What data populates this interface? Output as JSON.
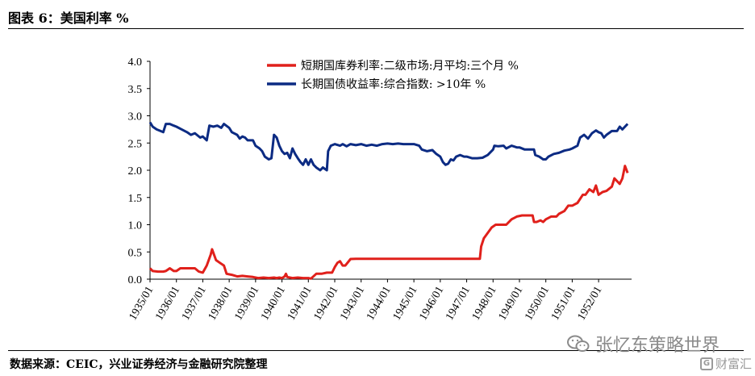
{
  "header": {
    "title": "图表 6：美国利率 %"
  },
  "footer": {
    "source": "数据来源：CEIC，兴业证券经济与金融研究院整理"
  },
  "watermark": {
    "text": "张忆东策略世界",
    "badge_text": "财富汇",
    "badge_icon": "G"
  },
  "chart_data": {
    "type": "line",
    "ylim": [
      0,
      4
    ],
    "yticks": [
      "0.0",
      "0.5",
      "1.0",
      "1.5",
      "2.0",
      "2.5",
      "3.0",
      "3.5",
      "4.0"
    ],
    "xlim": [
      1935.0,
      1953.25
    ],
    "xticks": [
      "1935/01",
      "1936/01",
      "1937/01",
      "1938/01",
      "1939/01",
      "1940/01",
      "1941/01",
      "1942/01",
      "1943/01",
      "1944/01",
      "1945/01",
      "1946/01",
      "1947/01",
      "1948/01",
      "1949/01",
      "1950/01",
      "1951/01",
      "1952/01"
    ],
    "legend_position": "top",
    "series": [
      {
        "name": "短期国库券利率:二级市场:月平均:三个月 %",
        "color": "#e0201b",
        "points": [
          [
            1935.0,
            0.2
          ],
          [
            1935.1,
            0.15
          ],
          [
            1935.3,
            0.14
          ],
          [
            1935.5,
            0.14
          ],
          [
            1935.6,
            0.15
          ],
          [
            1935.75,
            0.2
          ],
          [
            1935.9,
            0.15
          ],
          [
            1936.0,
            0.15
          ],
          [
            1936.15,
            0.2
          ],
          [
            1936.5,
            0.2
          ],
          [
            1936.7,
            0.2
          ],
          [
            1936.85,
            0.14
          ],
          [
            1937.0,
            0.12
          ],
          [
            1937.15,
            0.25
          ],
          [
            1937.3,
            0.45
          ],
          [
            1937.35,
            0.55
          ],
          [
            1937.5,
            0.35
          ],
          [
            1937.65,
            0.3
          ],
          [
            1937.8,
            0.25
          ],
          [
            1937.9,
            0.1
          ],
          [
            1938.1,
            0.08
          ],
          [
            1938.3,
            0.05
          ],
          [
            1938.5,
            0.06
          ],
          [
            1938.7,
            0.05
          ],
          [
            1938.9,
            0.04
          ],
          [
            1939.1,
            0.02
          ],
          [
            1939.3,
            0.03
          ],
          [
            1939.5,
            0.02
          ],
          [
            1939.7,
            0.03
          ],
          [
            1939.8,
            0.02
          ],
          [
            1939.9,
            0.03
          ],
          [
            1940.0,
            0.02
          ],
          [
            1940.1,
            0.05
          ],
          [
            1940.15,
            0.1
          ],
          [
            1940.2,
            0.04
          ],
          [
            1940.4,
            0.02
          ],
          [
            1940.6,
            0.03
          ],
          [
            1940.8,
            0.02
          ],
          [
            1941.0,
            0.02
          ],
          [
            1941.1,
            0.01
          ],
          [
            1941.3,
            0.1
          ],
          [
            1941.5,
            0.1
          ],
          [
            1941.7,
            0.12
          ],
          [
            1941.9,
            0.12
          ],
          [
            1942.0,
            0.22
          ],
          [
            1942.1,
            0.3
          ],
          [
            1942.2,
            0.33
          ],
          [
            1942.3,
            0.25
          ],
          [
            1942.4,
            0.25
          ],
          [
            1942.6,
            0.37
          ],
          [
            1942.8,
            0.375
          ],
          [
            1943.0,
            0.375
          ],
          [
            1944.0,
            0.375
          ],
          [
            1945.0,
            0.375
          ],
          [
            1946.0,
            0.375
          ],
          [
            1947.0,
            0.375
          ],
          [
            1947.5,
            0.375
          ],
          [
            1947.55,
            0.6
          ],
          [
            1947.65,
            0.75
          ],
          [
            1947.8,
            0.85
          ],
          [
            1947.95,
            0.95
          ],
          [
            1948.1,
            1.0
          ],
          [
            1948.5,
            1.0
          ],
          [
            1948.7,
            1.1
          ],
          [
            1948.9,
            1.15
          ],
          [
            1949.1,
            1.17
          ],
          [
            1949.4,
            1.17
          ],
          [
            1949.5,
            1.17
          ],
          [
            1949.55,
            1.05
          ],
          [
            1949.65,
            1.05
          ],
          [
            1949.8,
            1.08
          ],
          [
            1949.9,
            1.05
          ],
          [
            1950.0,
            1.1
          ],
          [
            1950.2,
            1.15
          ],
          [
            1950.4,
            1.15
          ],
          [
            1950.5,
            1.2
          ],
          [
            1950.7,
            1.25
          ],
          [
            1950.85,
            1.35
          ],
          [
            1951.0,
            1.35
          ],
          [
            1951.2,
            1.4
          ],
          [
            1951.4,
            1.55
          ],
          [
            1951.5,
            1.55
          ],
          [
            1951.65,
            1.65
          ],
          [
            1951.8,
            1.6
          ],
          [
            1951.9,
            1.72
          ],
          [
            1952.0,
            1.55
          ],
          [
            1952.15,
            1.6
          ],
          [
            1952.3,
            1.62
          ],
          [
            1952.5,
            1.7
          ],
          [
            1952.6,
            1.85
          ],
          [
            1952.7,
            1.8
          ],
          [
            1952.8,
            1.75
          ],
          [
            1952.9,
            1.85
          ],
          [
            1953.0,
            2.08
          ],
          [
            1953.1,
            1.95
          ]
        ]
      },
      {
        "name": "长期国债收益率:综合指数: >10年 %",
        "color": "#0c2b83",
        "points": [
          [
            1935.0,
            2.88
          ],
          [
            1935.1,
            2.8
          ],
          [
            1935.25,
            2.75
          ],
          [
            1935.4,
            2.72
          ],
          [
            1935.5,
            2.7
          ],
          [
            1935.6,
            2.85
          ],
          [
            1935.75,
            2.85
          ],
          [
            1935.9,
            2.82
          ],
          [
            1936.0,
            2.8
          ],
          [
            1936.2,
            2.75
          ],
          [
            1936.4,
            2.7
          ],
          [
            1936.55,
            2.65
          ],
          [
            1936.7,
            2.68
          ],
          [
            1936.9,
            2.6
          ],
          [
            1937.0,
            2.62
          ],
          [
            1937.15,
            2.55
          ],
          [
            1937.25,
            2.82
          ],
          [
            1937.4,
            2.8
          ],
          [
            1937.55,
            2.82
          ],
          [
            1937.7,
            2.78
          ],
          [
            1937.8,
            2.85
          ],
          [
            1938.0,
            2.78
          ],
          [
            1938.1,
            2.7
          ],
          [
            1938.3,
            2.65
          ],
          [
            1938.4,
            2.58
          ],
          [
            1938.5,
            2.62
          ],
          [
            1938.6,
            2.6
          ],
          [
            1938.7,
            2.55
          ],
          [
            1938.9,
            2.55
          ],
          [
            1939.0,
            2.45
          ],
          [
            1939.15,
            2.4
          ],
          [
            1939.25,
            2.35
          ],
          [
            1939.35,
            2.25
          ],
          [
            1939.5,
            2.2
          ],
          [
            1939.6,
            2.22
          ],
          [
            1939.7,
            2.65
          ],
          [
            1939.8,
            2.6
          ],
          [
            1939.9,
            2.45
          ],
          [
            1940.0,
            2.35
          ],
          [
            1940.1,
            2.3
          ],
          [
            1940.2,
            2.32
          ],
          [
            1940.3,
            2.22
          ],
          [
            1940.4,
            2.4
          ],
          [
            1940.5,
            2.3
          ],
          [
            1940.6,
            2.22
          ],
          [
            1940.7,
            2.15
          ],
          [
            1940.8,
            2.1
          ],
          [
            1940.9,
            2.2
          ],
          [
            1941.0,
            2.1
          ],
          [
            1941.1,
            2.2
          ],
          [
            1941.2,
            2.1
          ],
          [
            1941.3,
            2.05
          ],
          [
            1941.45,
            2.0
          ],
          [
            1941.55,
            2.05
          ],
          [
            1941.7,
            2.0
          ],
          [
            1941.75,
            2.35
          ],
          [
            1941.85,
            2.45
          ],
          [
            1942.0,
            2.48
          ],
          [
            1942.2,
            2.45
          ],
          [
            1942.3,
            2.48
          ],
          [
            1942.45,
            2.44
          ],
          [
            1942.6,
            2.48
          ],
          [
            1942.8,
            2.46
          ],
          [
            1943.0,
            2.48
          ],
          [
            1943.2,
            2.45
          ],
          [
            1943.4,
            2.47
          ],
          [
            1943.6,
            2.45
          ],
          [
            1943.8,
            2.48
          ],
          [
            1944.0,
            2.49
          ],
          [
            1944.2,
            2.48
          ],
          [
            1944.4,
            2.49
          ],
          [
            1944.6,
            2.48
          ],
          [
            1944.8,
            2.48
          ],
          [
            1945.0,
            2.48
          ],
          [
            1945.2,
            2.45
          ],
          [
            1945.3,
            2.38
          ],
          [
            1945.5,
            2.35
          ],
          [
            1945.7,
            2.37
          ],
          [
            1945.85,
            2.3
          ],
          [
            1946.0,
            2.25
          ],
          [
            1946.1,
            2.15
          ],
          [
            1946.2,
            2.1
          ],
          [
            1946.3,
            2.12
          ],
          [
            1946.4,
            2.2
          ],
          [
            1946.5,
            2.18
          ],
          [
            1946.6,
            2.25
          ],
          [
            1946.75,
            2.28
          ],
          [
            1946.9,
            2.25
          ],
          [
            1947.0,
            2.25
          ],
          [
            1947.2,
            2.22
          ],
          [
            1947.4,
            2.22
          ],
          [
            1947.6,
            2.23
          ],
          [
            1947.8,
            2.28
          ],
          [
            1948.0,
            2.38
          ],
          [
            1948.05,
            2.45
          ],
          [
            1948.2,
            2.44
          ],
          [
            1948.4,
            2.45
          ],
          [
            1948.5,
            2.4
          ],
          [
            1948.7,
            2.45
          ],
          [
            1948.9,
            2.42
          ],
          [
            1949.0,
            2.42
          ],
          [
            1949.2,
            2.38
          ],
          [
            1949.4,
            2.38
          ],
          [
            1949.55,
            2.38
          ],
          [
            1949.6,
            2.28
          ],
          [
            1949.75,
            2.25
          ],
          [
            1949.9,
            2.2
          ],
          [
            1950.0,
            2.2
          ],
          [
            1950.1,
            2.25
          ],
          [
            1950.3,
            2.3
          ],
          [
            1950.5,
            2.32
          ],
          [
            1950.7,
            2.36
          ],
          [
            1950.9,
            2.38
          ],
          [
            1951.0,
            2.4
          ],
          [
            1951.2,
            2.45
          ],
          [
            1951.3,
            2.6
          ],
          [
            1951.45,
            2.65
          ],
          [
            1951.6,
            2.58
          ],
          [
            1951.75,
            2.68
          ],
          [
            1951.9,
            2.73
          ],
          [
            1952.0,
            2.7
          ],
          [
            1952.1,
            2.68
          ],
          [
            1952.2,
            2.6
          ],
          [
            1952.3,
            2.65
          ],
          [
            1952.5,
            2.72
          ],
          [
            1952.7,
            2.72
          ],
          [
            1952.8,
            2.8
          ],
          [
            1952.9,
            2.75
          ],
          [
            1953.0,
            2.8
          ],
          [
            1953.1,
            2.85
          ]
        ]
      }
    ]
  }
}
